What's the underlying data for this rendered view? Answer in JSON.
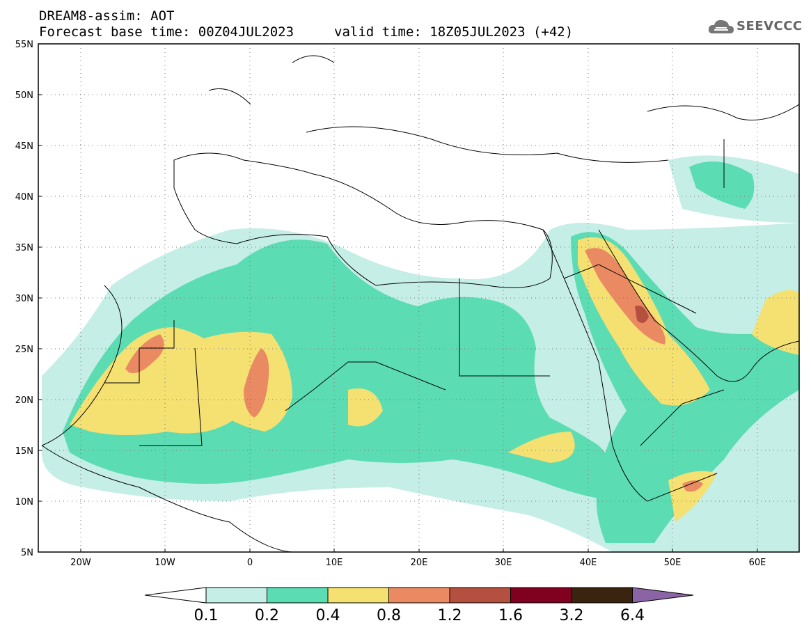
{
  "header": {
    "title": "DREAM8-assim: AOT",
    "base_time": "Forecast base time: 00Z04JUL2023",
    "valid_time": "valid time: 18Z05JUL2023 (+42)"
  },
  "logo": {
    "text": "SEEVCCC",
    "icon": "cloud-icon"
  },
  "map": {
    "lat_range": [
      5,
      55
    ],
    "lon_range": [
      -25,
      65
    ],
    "lat_ticks": [
      "55N",
      "50N",
      "45N",
      "40N",
      "35N",
      "30N",
      "25N",
      "20N",
      "15N",
      "10N",
      "5N"
    ],
    "lon_ticks": [
      "20W",
      "10W",
      "0",
      "10E",
      "20E",
      "30E",
      "40E",
      "50E",
      "60E"
    ],
    "grid": true
  },
  "colorbar": {
    "labels": [
      "0.1",
      "0.2",
      "0.4",
      "0.8",
      "1.2",
      "1.6",
      "3.2",
      "6.4"
    ],
    "colors": [
      "#c4eee6",
      "#5cdcb2",
      "#f5e072",
      "#ea8a62",
      "#b3503f",
      "#800020",
      "#3a2410",
      "#8a64a4"
    ]
  }
}
